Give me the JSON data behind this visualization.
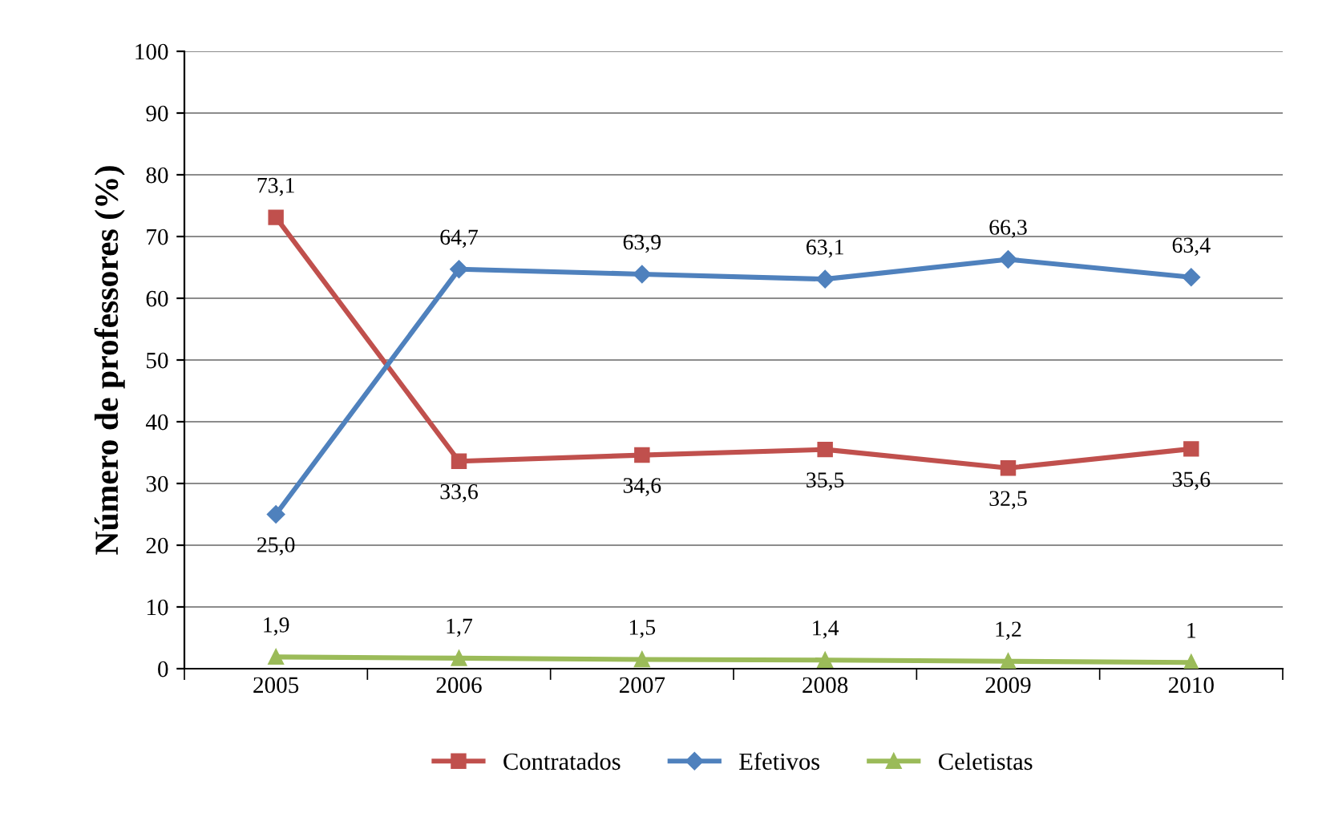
{
  "chart_data": {
    "type": "line",
    "ylabel": "Número de professores (%)",
    "categories": [
      "2005",
      "2006",
      "2007",
      "2008",
      "2009",
      "2010"
    ],
    "series": [
      {
        "name": "Contratados",
        "color": "#c0504d",
        "marker": "square",
        "values": [
          73.1,
          33.6,
          34.6,
          35.5,
          32.5,
          35.6
        ],
        "value_labels": [
          "73,1",
          "33,6",
          "34,6",
          "35,5",
          "32,5",
          "35,6"
        ]
      },
      {
        "name": "Efetivos",
        "color": "#4f81bd",
        "marker": "diamond",
        "values": [
          25.0,
          64.7,
          63.9,
          63.1,
          66.3,
          63.4
        ],
        "value_labels": [
          "25,0",
          "64,7",
          "63,9",
          "63,1",
          "66,3",
          "63,4"
        ]
      },
      {
        "name": "Celetistas",
        "color": "#9bbb59",
        "marker": "triangle",
        "values": [
          1.9,
          1.7,
          1.5,
          1.4,
          1.2,
          1
        ],
        "value_labels": [
          "1,9",
          "1,7",
          "1,5",
          "1,4",
          "1,2",
          "1"
        ]
      }
    ],
    "ylim": [
      0,
      100
    ],
    "yticks": [
      0,
      10,
      20,
      30,
      40,
      50,
      60,
      70,
      80,
      90,
      100
    ],
    "grid": "y",
    "legend": "bottom"
  }
}
